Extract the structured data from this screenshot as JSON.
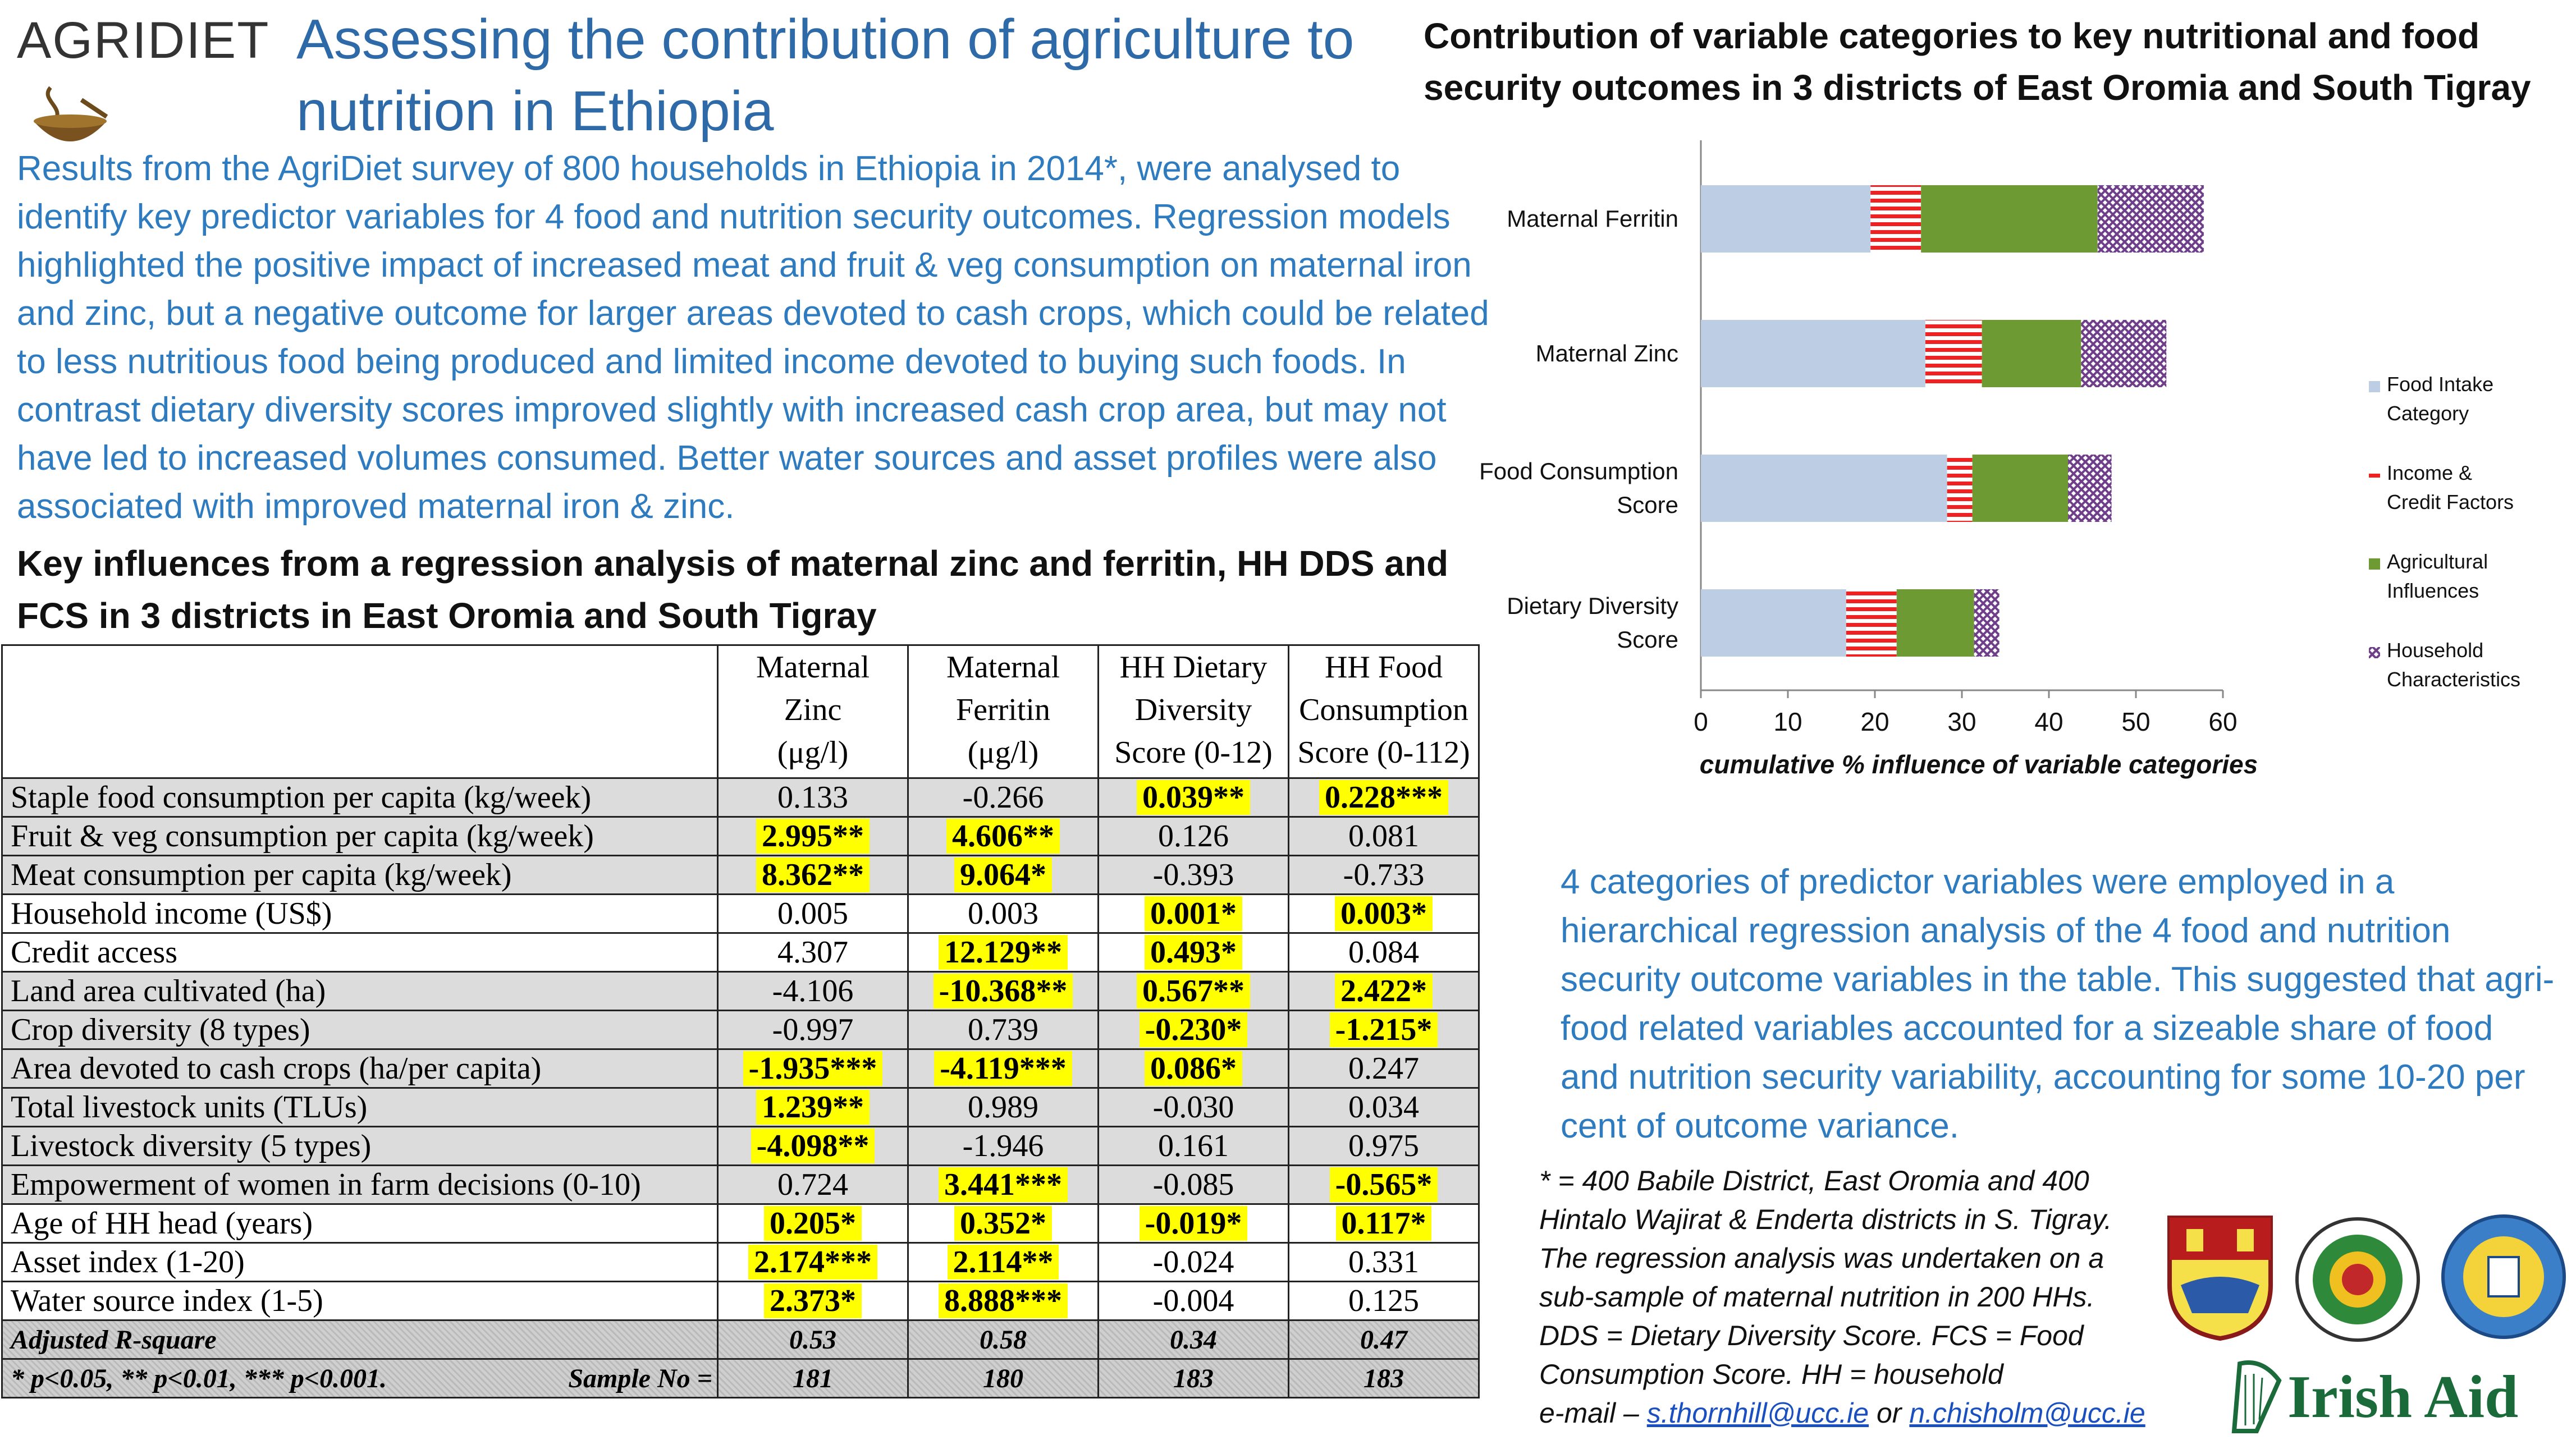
{
  "logo": {
    "text": "AGRIDIET"
  },
  "title": "Assessing the contribution of agriculture to nutrition in Ethiopia",
  "intro": "Results from the AgriDiet survey of 800 households in Ethiopia in 2014*, were analysed to identify key predictor variables for 4 food and nutrition security outcomes. Regression models highlighted the positive impact of increased meat and fruit & veg consumption on maternal iron and zinc, but a negative outcome for larger areas devoted to cash crops, which could be related to less nutritious food being produced and limited income devoted to buying such foods. In contrast dietary diversity scores improved slightly with increased cash crop area, but may not have led to increased volumes consumed. Better water sources and asset profiles were also associated with improved maternal iron & zinc.",
  "table_heading": "Key influences from a regression analysis of maternal zinc and ferritin, HH DDS and FCS in 3 districts in East Oromia and South Tigray",
  "table": {
    "headers": [
      [
        "Maternal",
        "Zinc",
        "(μg/l)"
      ],
      [
        "Maternal",
        "Ferritin",
        "(μg/l)"
      ],
      [
        "HH Dietary",
        "Diversity",
        "Score (0-12)"
      ],
      [
        "HH Food",
        "Consumption",
        "Score (0-112)"
      ]
    ],
    "rows": [
      {
        "label": "Staple food consumption per capita (kg/week)",
        "shade": "grey",
        "cells": [
          {
            "v": "0.133",
            "hl": false
          },
          {
            "v": "-0.266",
            "hl": false
          },
          {
            "v": "0.039**",
            "hl": true
          },
          {
            "v": "0.228***",
            "hl": true
          }
        ]
      },
      {
        "label": "Fruit & veg consumption per capita (kg/week)",
        "shade": "grey",
        "cells": [
          {
            "v": "2.995**",
            "hl": true
          },
          {
            "v": "4.606**",
            "hl": true
          },
          {
            "v": "0.126",
            "hl": false
          },
          {
            "v": "0.081",
            "hl": false
          }
        ]
      },
      {
        "label": "Meat consumption per capita (kg/week)",
        "shade": "grey",
        "cells": [
          {
            "v": "8.362**",
            "hl": true
          },
          {
            "v": "9.064*",
            "hl": true
          },
          {
            "v": "-0.393",
            "hl": false
          },
          {
            "v": "-0.733",
            "hl": false
          }
        ]
      },
      {
        "label": "Household income (US$)",
        "shade": "white",
        "cells": [
          {
            "v": "0.005",
            "hl": false
          },
          {
            "v": "0.003",
            "hl": false
          },
          {
            "v": "0.001*",
            "hl": true
          },
          {
            "v": "0.003*",
            "hl": true
          }
        ]
      },
      {
        "label": "Credit access",
        "shade": "white",
        "cells": [
          {
            "v": "4.307",
            "hl": false
          },
          {
            "v": "12.129**",
            "hl": true
          },
          {
            "v": "0.493*",
            "hl": true
          },
          {
            "v": "0.084",
            "hl": false
          }
        ]
      },
      {
        "label": "Land area cultivated (ha)",
        "shade": "grey",
        "cells": [
          {
            "v": "-4.106",
            "hl": false
          },
          {
            "v": "-10.368**",
            "hl": true
          },
          {
            "v": "0.567**",
            "hl": true
          },
          {
            "v": "2.422*",
            "hl": true
          }
        ]
      },
      {
        "label": "Crop diversity (8 types)",
        "shade": "grey",
        "cells": [
          {
            "v": "-0.997",
            "hl": false
          },
          {
            "v": "0.739",
            "hl": false
          },
          {
            "v": "-0.230*",
            "hl": true
          },
          {
            "v": "-1.215*",
            "hl": true
          }
        ]
      },
      {
        "label": "Area devoted to cash crops (ha/per capita)",
        "shade": "grey",
        "cells": [
          {
            "v": "-1.935***",
            "hl": true
          },
          {
            "v": "-4.119***",
            "hl": true
          },
          {
            "v": "0.086*",
            "hl": true
          },
          {
            "v": "0.247",
            "hl": false
          }
        ]
      },
      {
        "label": "Total livestock units (TLUs)",
        "shade": "grey",
        "cells": [
          {
            "v": "1.239**",
            "hl": true
          },
          {
            "v": "0.989",
            "hl": false
          },
          {
            "v": "-0.030",
            "hl": false
          },
          {
            "v": "0.034",
            "hl": false
          }
        ]
      },
      {
        "label": "Livestock diversity (5 types)",
        "shade": "grey",
        "cells": [
          {
            "v": "-4.098**",
            "hl": true
          },
          {
            "v": "-1.946",
            "hl": false
          },
          {
            "v": "0.161",
            "hl": false
          },
          {
            "v": "0.975",
            "hl": false
          }
        ]
      },
      {
        "label": "Empowerment of women in farm decisions (0-10)",
        "shade": "grey",
        "cells": [
          {
            "v": "0.724",
            "hl": false
          },
          {
            "v": "3.441***",
            "hl": true
          },
          {
            "v": "-0.085",
            "hl": false
          },
          {
            "v": "-0.565*",
            "hl": true
          }
        ]
      },
      {
        "label": "Age of HH head (years)",
        "shade": "white",
        "cells": [
          {
            "v": "0.205*",
            "hl": true
          },
          {
            "v": "0.352*",
            "hl": true
          },
          {
            "v": "-0.019*",
            "hl": true
          },
          {
            "v": "0.117*",
            "hl": true
          }
        ]
      },
      {
        "label": "Asset index (1-20)",
        "shade": "white",
        "cells": [
          {
            "v": "2.174***",
            "hl": true
          },
          {
            "v": "2.114**",
            "hl": true
          },
          {
            "v": "-0.024",
            "hl": false
          },
          {
            "v": "0.331",
            "hl": false
          }
        ]
      },
      {
        "label": "Water source index (1-5)",
        "shade": "white",
        "cells": [
          {
            "v": "2.373*",
            "hl": true
          },
          {
            "v": "8.888***",
            "hl": true
          },
          {
            "v": "-0.004",
            "hl": false
          },
          {
            "v": "0.125",
            "hl": false
          }
        ]
      }
    ],
    "footer_rows": [
      {
        "label": "Adjusted R-square",
        "label2": "",
        "cells": [
          "0.53",
          "0.58",
          "0.34",
          "0.47"
        ]
      },
      {
        "label": "* p<0.05, ** p<0.01, *** p<0.001.",
        "label2": "Sample No =",
        "cells": [
          "181",
          "180",
          "183",
          "183"
        ]
      }
    ]
  },
  "chart_data": {
    "type": "bar",
    "orientation": "horizontal",
    "stacked": true,
    "title": "Contribution of variable categories to key nutritional and food security outcomes in 3 districts of East Oromia and South Tigray",
    "xlabel": "cumulative % influence of variable categories",
    "ylabel": "",
    "xlim": [
      0,
      60
    ],
    "xticks": [
      "0",
      "10",
      "20",
      "30",
      "40",
      "50",
      "60"
    ],
    "grid": false,
    "legend_position": "right",
    "categories": [
      "Maternal Ferritin",
      "Maternal Zinc",
      "Food Consumption Score",
      "Dietary Diversity Score"
    ],
    "series": [
      {
        "name": "Food Intake Category",
        "values": [
          19.5,
          25.8,
          28.3,
          16.7
        ],
        "color": "#bccde4",
        "pattern": "solid"
      },
      {
        "name": "Income & Credit Factors",
        "values": [
          5.8,
          6.5,
          2.9,
          5.8
        ],
        "color": "#ee2222",
        "pattern": "hstripe"
      },
      {
        "name": "Agricultural Influences",
        "values": [
          20.3,
          11.4,
          11.0,
          8.9
        ],
        "color": "#6e9a34",
        "pattern": "solid"
      },
      {
        "name": "Household Characteristics",
        "values": [
          12.2,
          9.8,
          5.0,
          2.9
        ],
        "color": "#6f3f8a",
        "pattern": "cross"
      }
    ]
  },
  "right_text": "4 categories of predictor variables were employed in a hierarchical regression analysis of the 4 food and nutrition security outcome variables in the table. This suggested that agri-food related variables accounted for a sizeable share of food and nutrition security variability, accounting for some 10-20 per cent of outcome variance.",
  "footnote": {
    "text": "* = 400 Babile District, East Oromia and 400 Hintalo Wajirat & Enderta districts in S. Tigray. The regression analysis was undertaken on a sub-sample of maternal nutrition in 200 HHs. DDS = Dietary Diversity Score. FCS = Food Consumption Score. HH = household",
    "email_prefix": "e-mail – ",
    "email1": "s.thornhill@ucc.ie",
    "or": " or ",
    "email2": "n.chisholm@ucc.ie"
  },
  "partners": {
    "irish_aid": "Irish Aid"
  }
}
